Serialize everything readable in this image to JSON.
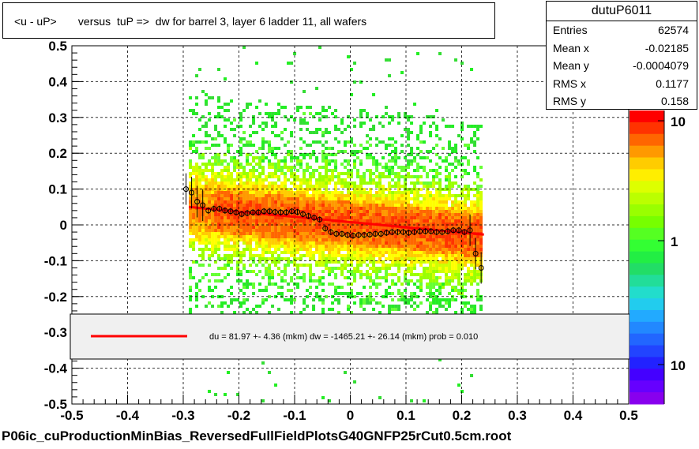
{
  "title": "<u - uP>       versus  tuP =>  dw for barrel 3, layer 6 ladder 11, all wafers",
  "stats": {
    "name": "dutuP6011",
    "rows": [
      {
        "label": "Entries",
        "value": "62574"
      },
      {
        "label": "Mean x",
        "value": "-0.02185"
      },
      {
        "label": "Mean y",
        "value": "-0.0004079"
      },
      {
        "label": "RMS x",
        "value": "0.1177"
      },
      {
        "label": "RMS y",
        "value": "0.158"
      }
    ]
  },
  "legend_text": "du =   81.97 +-  4.36 (mkm) dw = -1465.21 +- 26.14 (mkm) prob = 0.010",
  "footer": "P06ic_cuProductionMinBias_ReversedFullFieldPlotsG40GNFP25rCut0.5cm.root",
  "colors": {
    "fit_line": "#ff0000",
    "profile_marker": "#000000"
  },
  "chart_data": {
    "type": "heatmap",
    "xlim": [
      -0.5,
      0.5
    ],
    "ylim": [
      -0.5,
      0.5
    ],
    "x_ticks": [
      "-0.5",
      "-0.4",
      "-0.3",
      "-0.2",
      "-0.1",
      "0",
      "0.1",
      "0.2",
      "0.3",
      "0.4",
      "0.5"
    ],
    "y_ticks": [
      "-0.5",
      "-0.4",
      "-0.3",
      "-0.2",
      "-0.1",
      "0",
      "0.1",
      "0.2",
      "0.3",
      "0.4",
      "0.5"
    ],
    "grid": true,
    "z_scale": "log",
    "colorbar_labels": [
      "10",
      "1",
      "10"
    ],
    "fit_line": {
      "x": [
        -0.29,
        0.24
      ],
      "y": [
        0.05,
        -0.027
      ]
    },
    "profile": {
      "x": [
        -0.295,
        -0.285,
        -0.275,
        -0.265,
        -0.255,
        -0.245,
        -0.235,
        -0.225,
        -0.215,
        -0.205,
        -0.195,
        -0.185,
        -0.175,
        -0.165,
        -0.155,
        -0.145,
        -0.135,
        -0.125,
        -0.115,
        -0.105,
        -0.095,
        -0.085,
        -0.075,
        -0.065,
        -0.055,
        -0.045,
        -0.035,
        -0.025,
        -0.015,
        -0.005,
        0.005,
        0.015,
        0.025,
        0.035,
        0.045,
        0.055,
        0.065,
        0.075,
        0.085,
        0.095,
        0.105,
        0.115,
        0.125,
        0.135,
        0.145,
        0.155,
        0.165,
        0.175,
        0.185,
        0.195,
        0.205,
        0.215,
        0.225,
        0.235
      ],
      "y": [
        0.1,
        0.09,
        0.065,
        0.055,
        0.04,
        0.045,
        0.045,
        0.04,
        0.038,
        0.035,
        0.03,
        0.033,
        0.035,
        0.035,
        0.038,
        0.038,
        0.036,
        0.035,
        0.035,
        0.038,
        0.036,
        0.03,
        0.025,
        0.02,
        0.015,
        -0.01,
        -0.02,
        -0.025,
        -0.025,
        -0.028,
        -0.03,
        -0.028,
        -0.028,
        -0.027,
        -0.025,
        -0.025,
        -0.022,
        -0.02,
        -0.02,
        -0.02,
        -0.022,
        -0.02,
        -0.018,
        -0.018,
        -0.018,
        -0.02,
        -0.02,
        -0.018,
        -0.015,
        -0.015,
        -0.02,
        -0.015,
        -0.08,
        -0.12
      ]
    }
  }
}
